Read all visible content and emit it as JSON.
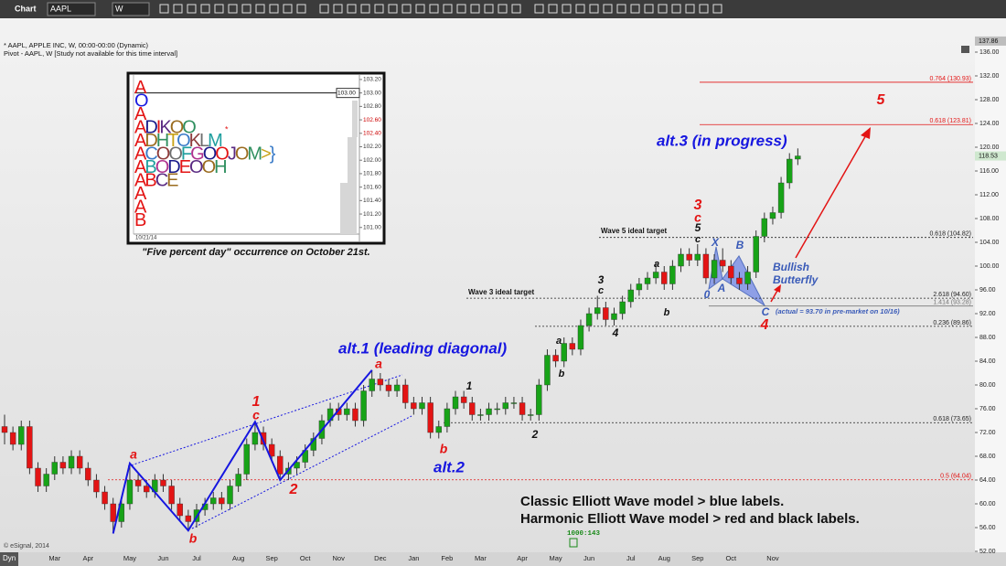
{
  "ui": {
    "window_title": "Chart",
    "symbol": "AAPL",
    "interval": "W",
    "header_1": "* AAPL, APPLE INC, W, 00:00-00:00 (Dynamic)",
    "header_2": "Pivot - AAPL, W [Study not available for this time interval]",
    "x_axis_mode": "Dyn",
    "copyright": "© eSignal, 2014",
    "status": "1000:143"
  },
  "chart_data": {
    "type": "candlestick",
    "categories": [
      null,
      null,
      null,
      null,
      null,
      null,
      "Mar",
      null,
      null,
      null,
      "Apr",
      null,
      null,
      null,
      null,
      "May",
      null,
      null,
      null,
      "Jun",
      null,
      null,
      null,
      "Jul",
      null,
      null,
      null,
      null,
      "Aug",
      null,
      null,
      null,
      "Sep",
      null,
      null,
      null,
      "Oct",
      null,
      null,
      null,
      "Nov",
      null,
      null,
      null,
      null,
      "Dec",
      null,
      null,
      null,
      "Jan",
      null,
      null,
      null,
      "Feb",
      null,
      null,
      null,
      "Mar",
      null,
      null,
      null,
      null,
      "Apr",
      null,
      null,
      null,
      "May",
      null,
      null,
      null,
      "Jun",
      null,
      null,
      null,
      null,
      "Jul",
      null,
      null,
      null,
      "Aug",
      null,
      null,
      null,
      "Sep",
      null,
      null,
      null,
      "Oct",
      null,
      null,
      null,
      null,
      "Nov",
      null,
      null,
      null
    ],
    "open": [
      73,
      72,
      70,
      73,
      66,
      63,
      65,
      67,
      66,
      68,
      66,
      64,
      62,
      60,
      57,
      60,
      64,
      63,
      62,
      64,
      63,
      60,
      58,
      57,
      59,
      60,
      61,
      60,
      63,
      65,
      70,
      72,
      70,
      68,
      65,
      66,
      67,
      69,
      71,
      74,
      76,
      75,
      76,
      74,
      79,
      81,
      80,
      79,
      80,
      77,
      76,
      77,
      72,
      73,
      76,
      78,
      77,
      75,
      75,
      76,
      76,
      77,
      77,
      75,
      75,
      80,
      85,
      84,
      87,
      86,
      90,
      92,
      93,
      91,
      92,
      94,
      96,
      97,
      98,
      99,
      97,
      100,
      102,
      101,
      102,
      98,
      101,
      100,
      98,
      97,
      99,
      105,
      108,
      109,
      114,
      118
    ],
    "high": [
      75,
      73,
      74,
      74,
      67,
      66,
      68,
      68,
      69,
      69,
      67,
      65,
      63,
      61,
      61,
      66.8,
      65,
      64,
      65,
      65,
      64,
      61,
      59,
      60,
      61,
      62,
      62,
      64,
      66,
      71,
      73.8,
      73,
      71,
      69,
      67,
      68,
      70,
      72,
      75,
      77,
      77,
      77,
      77,
      80,
      82.5,
      82,
      81,
      81,
      81,
      78,
      78,
      78,
      74,
      77,
      79,
      79,
      78,
      76,
      77,
      77,
      78,
      78,
      78,
      76,
      81,
      86,
      86,
      88,
      88,
      91,
      93,
      95,
      94,
      93,
      95,
      97,
      98,
      99,
      100.7,
      100,
      101,
      103,
      103,
      103.7,
      103,
      102,
      103,
      101,
      99,
      100,
      106,
      109,
      110,
      115,
      119,
      119.8
    ],
    "low": [
      70,
      69,
      69,
      65,
      62,
      62,
      64,
      65,
      65,
      65,
      63,
      61,
      59,
      55,
      56,
      59,
      62,
      61,
      61,
      62,
      59,
      57,
      55.5,
      56,
      58,
      59,
      59,
      59,
      62,
      64,
      69,
      69,
      67,
      64,
      64,
      65,
      66,
      68,
      70,
      73,
      74,
      74,
      73,
      73,
      78,
      79,
      78,
      78,
      76,
      75,
      75,
      71,
      71,
      72,
      75,
      76,
      74,
      74,
      74,
      75,
      75,
      76,
      74,
      74,
      74,
      79,
      83,
      83,
      85,
      85,
      89,
      91,
      90,
      90,
      91,
      93,
      95,
      96,
      97,
      96,
      96,
      99,
      100,
      100,
      97,
      97,
      99,
      97,
      96,
      96,
      98,
      104,
      107,
      108,
      113,
      117
    ],
    "close": [
      72,
      70,
      73,
      66,
      63,
      65,
      67,
      66,
      68,
      66,
      64,
      62,
      60,
      57,
      60,
      64,
      63,
      62,
      64,
      63,
      60,
      58,
      57,
      59,
      60,
      61,
      60,
      63,
      65,
      70,
      72,
      70,
      68,
      65,
      66,
      67,
      69,
      71,
      74,
      76,
      75,
      76,
      74,
      79,
      81,
      80,
      79,
      80,
      77,
      76,
      77,
      72,
      73,
      76,
      78,
      77,
      75,
      75,
      76,
      76,
      77,
      77,
      75,
      75,
      80,
      85,
      84,
      87,
      86,
      90,
      92,
      93,
      91,
      92,
      94,
      96,
      97,
      98,
      99,
      97,
      100,
      102,
      101,
      102,
      98,
      101,
      100,
      98,
      97,
      99,
      105,
      108,
      109,
      114,
      118,
      118.53
    ],
    "up_color": "#17a317",
    "down_color": "#e31414",
    "ylim": [
      52,
      138
    ],
    "yticks": [
      {
        "value": 52,
        "label": "52.00"
      },
      {
        "value": 56,
        "label": "56.00"
      },
      {
        "value": 60,
        "label": "60.00"
      },
      {
        "value": 64,
        "label": "64.00"
      },
      {
        "value": 68,
        "label": "68.00"
      },
      {
        "value": 72,
        "label": "72.00"
      },
      {
        "value": 76,
        "label": "76.00"
      },
      {
        "value": 80,
        "label": "80.00"
      },
      {
        "value": 84,
        "label": "84.00"
      },
      {
        "value": 88,
        "label": "88.00"
      },
      {
        "value": 92,
        "label": "92.00"
      },
      {
        "value": 96,
        "label": "96.00"
      },
      {
        "value": 100,
        "label": "100.00"
      },
      {
        "value": 104,
        "label": "104.00"
      },
      {
        "value": 108,
        "label": "108.00"
      },
      {
        "value": 112,
        "label": "112.00"
      },
      {
        "value": 116,
        "label": "116.00"
      },
      {
        "value": 120,
        "label": "120.00"
      },
      {
        "value": 124,
        "label": "124.00"
      },
      {
        "value": 128,
        "label": "128.00"
      },
      {
        "value": 132,
        "label": "132.00"
      },
      {
        "value": 136,
        "label": "136.00"
      }
    ],
    "top_price": 137.86,
    "last_price": 118.53,
    "levels": [
      {
        "value": 130.93,
        "label": "0.764 (130.93)",
        "color": "#e31414",
        "dashed": false
      },
      {
        "value": 123.81,
        "label": "0.618 (123.81)",
        "color": "#e31414",
        "dashed": false
      },
      {
        "value": 104.82,
        "label": "0.618 (104.82)",
        "color": "#222222",
        "dashed": true
      },
      {
        "value": 94.6,
        "label": "2.618 (94.60)",
        "color": "#222222",
        "dashed": true
      },
      {
        "value": 93.28,
        "label": "1.414 (93.28)",
        "color": "#777777",
        "dashed": false
      },
      {
        "value": 89.86,
        "label": "0.236 (89.86)",
        "color": "#222222",
        "dashed": true
      },
      {
        "value": 73.65,
        "label": "0.618 (73.65)",
        "color": "#222222",
        "dashed": true
      },
      {
        "value": 64.04,
        "label": "0.5 (64.04)",
        "color": "#e31414",
        "dashed": true
      }
    ],
    "annotations": [
      {
        "text": "alt.1 (leading diagonal)",
        "color": "#1616e0"
      },
      {
        "text": "alt.2",
        "color": "#1616e0"
      },
      {
        "text": "alt.3 (in progress)",
        "color": "#1616e0"
      },
      {
        "text": "Bullish",
        "color": "#3a5bb8"
      },
      {
        "text": "Butterfly",
        "color": "#3a5bb8"
      },
      {
        "text": "(actual = 93.70 in pre-market on 10/16)",
        "color": "#3a5bb8"
      },
      {
        "text": "Wave 5 ideal target",
        "color": "#111111"
      },
      {
        "text": "Wave 3 ideal target",
        "color": "#111111"
      },
      {
        "text": "Classic Elliott Wave model > blue labels.",
        "color": "#111111"
      },
      {
        "text": "Harmonic Elliott Wave model > red and black labels.",
        "color": "#111111"
      },
      {
        "text": "a",
        "color": "#e31414"
      },
      {
        "text": "b",
        "color": "#e31414"
      },
      {
        "text": "1",
        "color": "#e31414"
      },
      {
        "text": "c",
        "color": "#e31414"
      },
      {
        "text": "2",
        "color": "#e31414"
      },
      {
        "text": "a",
        "color": "#e31414"
      },
      {
        "text": "b",
        "color": "#e31414"
      },
      {
        "text": "3",
        "color": "#e31414"
      },
      {
        "text": "c",
        "color": "#e31414"
      },
      {
        "text": "4",
        "color": "#e31414"
      },
      {
        "text": "5",
        "color": "#e31414"
      },
      {
        "text": "1",
        "color": "#111111"
      },
      {
        "text": "2",
        "color": "#111111"
      },
      {
        "text": "3",
        "color": "#111111"
      },
      {
        "text": "c",
        "color": "#111111"
      },
      {
        "text": "4",
        "color": "#111111"
      },
      {
        "text": "a",
        "color": "#111111"
      },
      {
        "text": "b",
        "color": "#111111"
      },
      {
        "text": "a",
        "color": "#111111"
      },
      {
        "text": "b",
        "color": "#111111"
      },
      {
        "text": "5",
        "color": "#111111"
      },
      {
        "text": "c",
        "color": "#111111"
      },
      {
        "text": "X",
        "color": "#3a5bb8"
      },
      {
        "text": "B",
        "color": "#3a5bb8"
      },
      {
        "text": "A",
        "color": "#3a5bb8"
      },
      {
        "text": "C",
        "color": "#3a5bb8"
      },
      {
        "text": "0",
        "color": "#3a5bb8"
      }
    ]
  },
  "inset": {
    "rows": [
      "A",
      "O",
      "A",
      "ADIKOO",
      "ADHTOKLM",
      "ACOOFGOOJOM>}",
      "ABODEOOH",
      "ABCE",
      "A",
      "A",
      "B"
    ],
    "marker": "*",
    "date": "10/21/14",
    "current": {
      "value": 103,
      "label": "103.00"
    },
    "ylim": [
      100.82,
      103.24
    ],
    "yticks": [
      {
        "value": 103.2,
        "label": "103.20"
      },
      {
        "value": 103,
        "label": "103.00"
      },
      {
        "value": 102.8,
        "label": "102.80"
      },
      {
        "value": 102.6,
        "label": "102.60",
        "color": "#cc0000"
      },
      {
        "value": 102.4,
        "label": "102.40",
        "color": "#cc0000"
      },
      {
        "value": 102.2,
        "label": "102.20"
      },
      {
        "value": 102,
        "label": "102.00"
      },
      {
        "value": 101.8,
        "label": "101.80"
      },
      {
        "value": 101.6,
        "label": "101.60"
      },
      {
        "value": 101.4,
        "label": "101.40"
      },
      {
        "value": 101.2,
        "label": "101.20"
      },
      {
        "value": 101,
        "label": "101.00"
      }
    ],
    "caption": "\"Five percent day\" occurrence on October 21st."
  }
}
